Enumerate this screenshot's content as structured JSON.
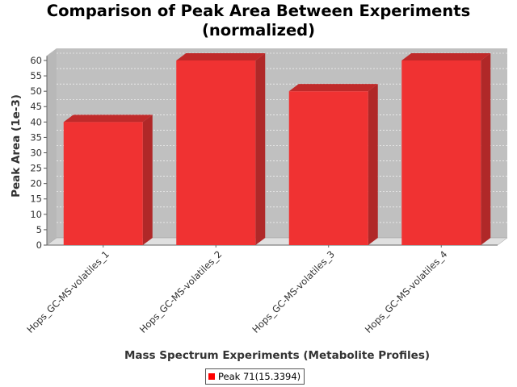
{
  "chart_data": {
    "type": "bar",
    "title_line1": "Comparison of Peak Area Between Experiments",
    "title_line2": "(normalized)",
    "xlabel": "Mass Spectrum Experiments (Metabolite Profiles)",
    "ylabel": "Peak Area (1e-3)",
    "categories": [
      "Hops_GC-MS-volatiles_1",
      "Hops_GC-MS-volatiles_2",
      "Hops_GC-MS-volatiles_3",
      "Hops_GC-MS-volatiles_4"
    ],
    "series": [
      {
        "name": "Peak 71(15.3394)",
        "values": [
          40,
          60,
          50,
          60
        ]
      }
    ],
    "ylim": [
      0,
      62
    ],
    "yticks": [
      0,
      5,
      10,
      15,
      20,
      25,
      30,
      35,
      40,
      45,
      50,
      55,
      60
    ],
    "grid": true,
    "legend_position": "bottom",
    "colors": {
      "bar_front": "#f03232",
      "bar_side": "#b02828",
      "bar_top": "#c02a2a",
      "plot_back": "#c0c0c0",
      "plot_floor": "#e0e0e0"
    }
  }
}
